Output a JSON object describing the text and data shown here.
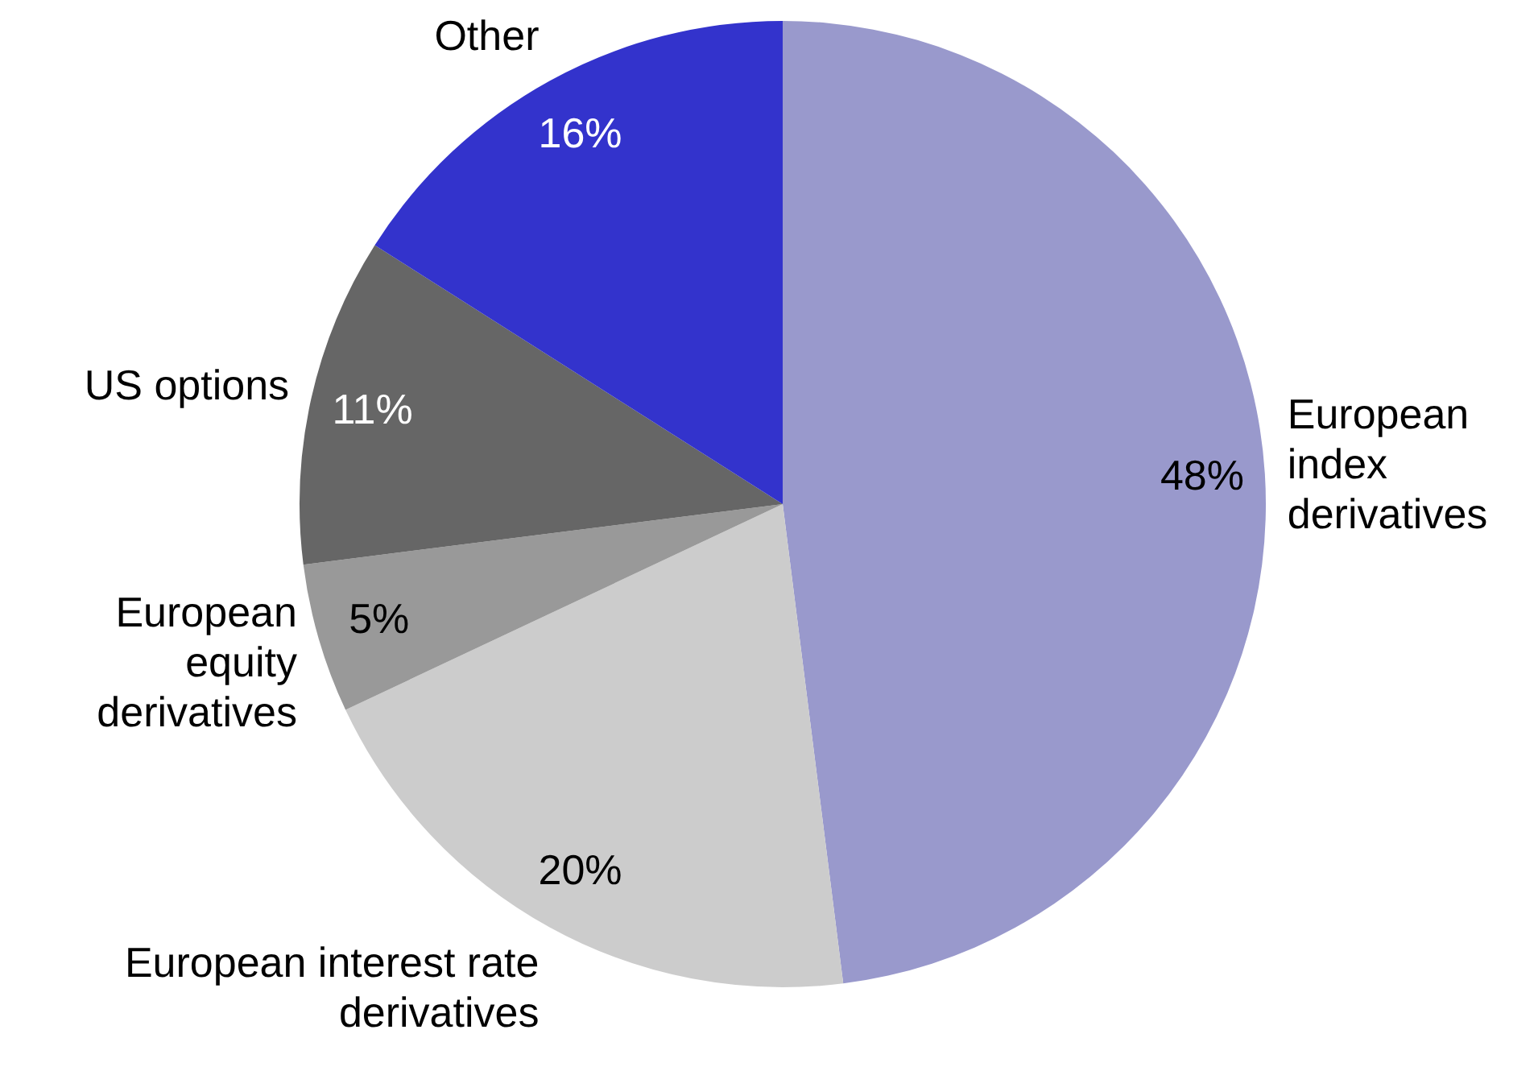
{
  "chart_data": {
    "type": "pie",
    "categories": [
      "European index derivatives",
      "European interest rate derivatives",
      "European equity derivatives",
      "US options",
      "Other"
    ],
    "values": [
      48,
      20,
      5,
      11,
      16
    ],
    "value_labels": [
      "48%",
      "20%",
      "5%",
      "11%",
      "16%"
    ],
    "colors": [
      "#9999cc",
      "#cccccc",
      "#999999",
      "#666666",
      "#3333cc"
    ],
    "legend": false
  }
}
